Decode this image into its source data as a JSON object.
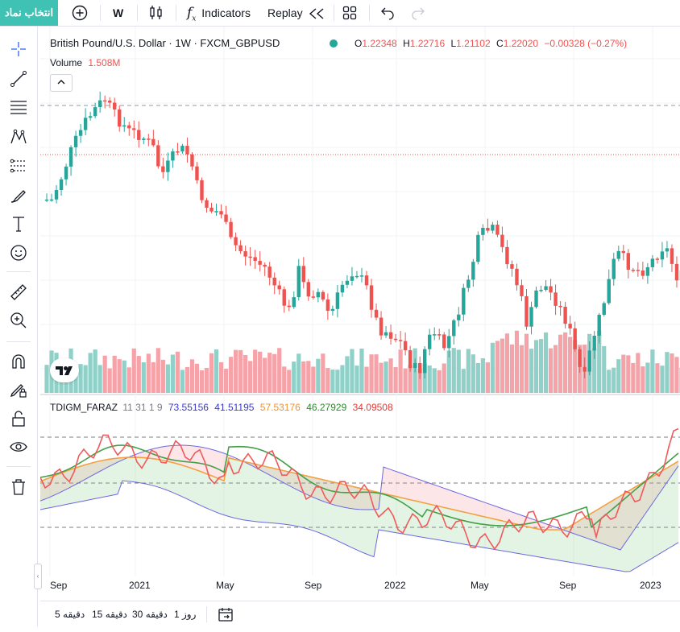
{
  "toolbar": {
    "symbol_button": "انتخاب نماد",
    "interval": "W",
    "indicators": "Indicators",
    "replay": "Replay"
  },
  "legend": {
    "title": "British Pound/U.S. Dollar · 1W · FXCM_GBPUSD",
    "o_label": "O",
    "o_value": "1.22348",
    "h_label": "H",
    "h_value": "1.22716",
    "l_label": "L",
    "l_value": "1.21102",
    "c_label": "C",
    "c_value": "1.22020",
    "change": "−0.00328 (−0.27%)",
    "volume_label": "Volume",
    "volume_value": "1.508",
    "volume_unit": "M"
  },
  "indicator": {
    "name": "TDIGM_FARAZ",
    "params": "11 31 1 9",
    "v1": "73.55156",
    "v2": "41.51195",
    "v3": "57.53176",
    "v4": "46.27929",
    "v5": "34.09508"
  },
  "x_axis": {
    "labels": [
      "Sep",
      "2021",
      "May",
      "Sep",
      "2022",
      "May",
      "Sep",
      "2023"
    ]
  },
  "bottom": {
    "tf": [
      "5 دقیقه",
      "15 دقیقه",
      "30 دقیقه",
      "1 روز"
    ]
  },
  "colors": {
    "up": "#26a69a",
    "down": "#ef5350",
    "vol_up": "#8fd1c8",
    "vol_down": "#f5a3a8",
    "band": "#6b69e0",
    "rsi": "#f05a5a",
    "green_line": "#43a047",
    "orange_line": "#f5a040",
    "brand": "#3fc1b4"
  },
  "icons": [
    "add-icon",
    "bars-style-icon",
    "indicators-icon",
    "replay-icon",
    "layout-icon",
    "undo-icon",
    "redo-icon",
    "crosshair-icon",
    "trend-line-icon",
    "fib-icon",
    "pattern-icon",
    "projection-icon",
    "brush-icon",
    "text-icon",
    "emoji-icon",
    "ruler-icon",
    "zoom-icon",
    "magnet-icon",
    "lock-draw-icon",
    "lock-icon",
    "eye-icon",
    "trash-icon",
    "date-range-icon",
    "tradingview-logo"
  ]
}
